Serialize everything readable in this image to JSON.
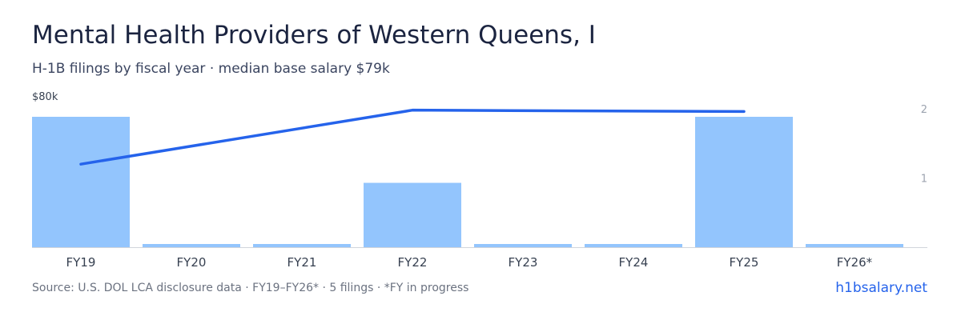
{
  "header": {
    "title": "Mental Health Providers of Western Queens, I",
    "subtitle": "H-1B filings by fiscal year · median base salary $79k"
  },
  "footer": {
    "source": "Source: U.S. DOL LCA disclosure data · FY19–FY26* · 5 filings · *FY in progress",
    "brand": "h1bsalary.net"
  },
  "colors": {
    "bar": "#93c5fd",
    "line": "#2563eb",
    "axis": "#d1d5db",
    "tick_text": "#9ca3af",
    "label_text": "#374151"
  },
  "chart_data": {
    "type": "bar",
    "categories": [
      "FY19",
      "FY20",
      "FY21",
      "FY22",
      "FY23",
      "FY24",
      "FY25",
      "FY26*"
    ],
    "series": [
      {
        "type": "bar",
        "axis": "left",
        "values": [
          77,
          0,
          0,
          38,
          0,
          0,
          77,
          0
        ]
      },
      {
        "type": "line",
        "axis": "right",
        "values": [
          1.2,
          null,
          null,
          1.98,
          null,
          null,
          1.96,
          null
        ]
      }
    ],
    "y_left": {
      "range": [
        0,
        94
      ],
      "tick_label": "$80k",
      "tick_value": 80
    },
    "y_right": {
      "range": [
        0,
        2.3
      ],
      "ticks": [
        1,
        2
      ]
    },
    "legend": "none",
    "grid": false
  }
}
